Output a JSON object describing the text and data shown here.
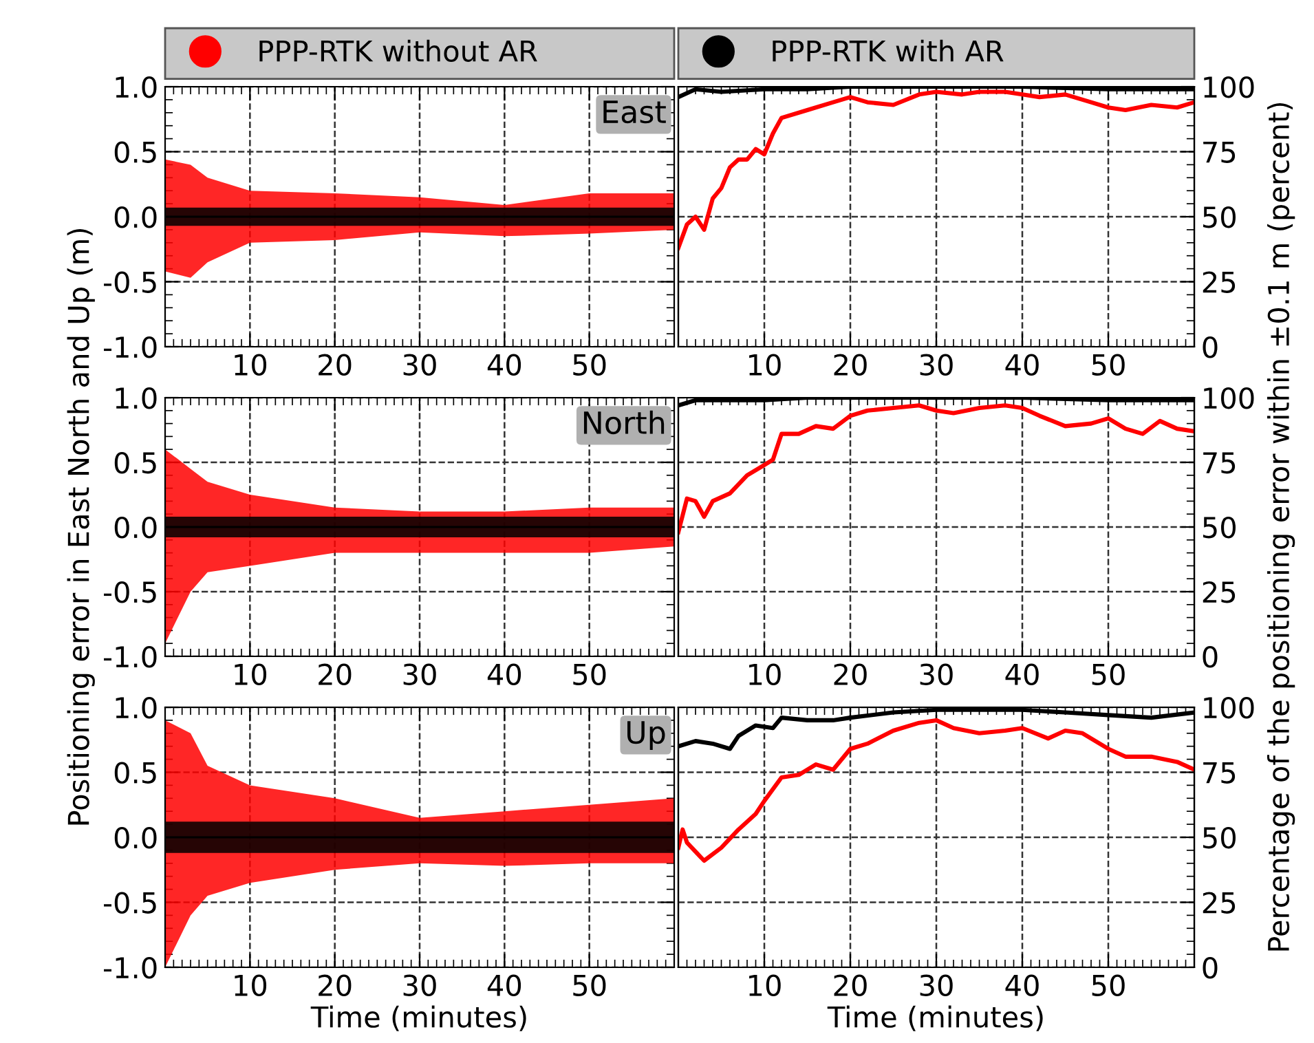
{
  "chart_data": [
    {
      "type": "line",
      "annotations": [
        "East"
      ],
      "xlim": [
        0,
        60
      ],
      "xticks": [
        10,
        20,
        30,
        40,
        50
      ],
      "ylim": [
        -1,
        1
      ],
      "yticks": [
        {
          "value": -1,
          "label": "-1.0"
        },
        {
          "value": -0.5,
          "label": "-0.5"
        },
        {
          "value": 0,
          "label": "0.0"
        },
        {
          "value": 0.5,
          "label": "0.5"
        },
        {
          "value": 1,
          "label": "1.0"
        }
      ],
      "grid": true,
      "legend": "top",
      "line_style": "solid",
      "series": [
        {
          "name": "PPP-RTK without AR",
          "color": "#ff0000",
          "x": [
            0,
            3,
            5,
            10,
            20,
            30,
            40,
            50,
            60
          ],
          "values": [
            null,
            null,
            null,
            null,
            null,
            null,
            null,
            null,
            null
          ],
          "lower": [
            -0.42,
            -0.47,
            -0.35,
            -0.2,
            -0.18,
            -0.12,
            -0.15,
            -0.13,
            -0.1
          ],
          "upper": [
            0.44,
            0.4,
            0.3,
            0.2,
            0.18,
            0.15,
            0.09,
            0.18,
            0.18
          ]
        },
        {
          "color": "#000000",
          "x": [
            0,
            3,
            5,
            10,
            20,
            30,
            40,
            50,
            60
          ],
          "values": [
            0,
            0,
            0,
            0,
            0,
            0,
            0,
            0,
            0
          ],
          "lower": [
            -0.07,
            -0.07,
            -0.07,
            -0.07,
            -0.07,
            -0.07,
            -0.07,
            -0.07,
            -0.07
          ],
          "upper": [
            0.07,
            0.07,
            0.07,
            0.07,
            0.07,
            0.07,
            0.07,
            0.07,
            0.07
          ]
        }
      ]
    },
    {
      "type": "line",
      "xlim": [
        0,
        60
      ],
      "xticks": [
        10,
        20,
        30,
        40,
        50
      ],
      "y2lim": [
        0,
        100
      ],
      "y2ticks": [
        0,
        25,
        50,
        75,
        100
      ],
      "grid": true,
      "legend": "top",
      "line_style": "solid",
      "series": [
        {
          "color": "#ff0000",
          "axis": "y2",
          "x": [
            0,
            1,
            2,
            3,
            4,
            5,
            6,
            7,
            8,
            9,
            10,
            11,
            12,
            15,
            18,
            20,
            22,
            25,
            28,
            30,
            33,
            35,
            38,
            40,
            42,
            45,
            48,
            50,
            52,
            55,
            58,
            60
          ],
          "values": [
            38,
            47,
            50,
            45,
            57,
            61,
            69,
            72,
            72,
            76,
            74,
            82,
            88,
            91,
            94,
            96,
            94,
            93,
            97,
            98,
            97,
            98,
            98,
            97,
            96,
            97,
            94,
            92,
            91,
            93,
            92,
            94
          ]
        },
        {
          "name": "PPP-RTK with AR",
          "color": "#000000",
          "axis": "y2",
          "x": [
            0,
            2,
            5,
            10,
            15,
            20,
            30,
            40,
            50,
            60
          ],
          "values": [
            96,
            99,
            98,
            99,
            99,
            100,
            100,
            100,
            99,
            99
          ]
        }
      ]
    },
    {
      "type": "line",
      "annotations": [
        "North"
      ],
      "ylabel": "Positioning error in East North and Up (m)",
      "xlim": [
        0,
        60
      ],
      "xticks": [
        10,
        20,
        30,
        40,
        50
      ],
      "ylim": [
        -1,
        1
      ],
      "yticks": [
        {
          "value": -1,
          "label": "-1.0"
        },
        {
          "value": -0.5,
          "label": "-0.5"
        },
        {
          "value": 0,
          "label": "0.0"
        },
        {
          "value": 0.5,
          "label": "0.5"
        },
        {
          "value": 1,
          "label": "1.0"
        }
      ],
      "grid": true,
      "line_style": "solid",
      "series": [
        {
          "color": "#ff0000",
          "x": [
            0,
            3,
            5,
            10,
            20,
            30,
            40,
            50,
            60
          ],
          "values": [
            null,
            null,
            null,
            null,
            null,
            null,
            null,
            null,
            null
          ],
          "lower": [
            -0.9,
            -0.5,
            -0.35,
            -0.3,
            -0.2,
            -0.2,
            -0.2,
            -0.2,
            -0.15
          ],
          "upper": [
            0.6,
            0.45,
            0.35,
            0.25,
            0.15,
            0.12,
            0.12,
            0.15,
            0.15
          ]
        },
        {
          "color": "#000000",
          "x": [
            0,
            3,
            5,
            10,
            20,
            30,
            40,
            50,
            60
          ],
          "values": [
            0,
            0,
            0,
            0,
            0,
            0,
            0,
            0,
            0
          ],
          "lower": [
            -0.08,
            -0.08,
            -0.08,
            -0.08,
            -0.08,
            -0.08,
            -0.08,
            -0.08,
            -0.08
          ],
          "upper": [
            0.08,
            0.08,
            0.08,
            0.08,
            0.08,
            0.08,
            0.08,
            0.08,
            0.08
          ]
        }
      ]
    },
    {
      "type": "line",
      "y2label": "Percentage of the positioning error within ±0.1 m (percent)",
      "xlim": [
        0,
        60
      ],
      "xticks": [
        10,
        20,
        30,
        40,
        50
      ],
      "y2lim": [
        0,
        100
      ],
      "y2ticks": [
        0,
        25,
        50,
        75,
        100
      ],
      "grid": true,
      "line_style": "solid",
      "series": [
        {
          "color": "#ff0000",
          "axis": "y2",
          "x": [
            0,
            1,
            2,
            3,
            4,
            6,
            8,
            10,
            11,
            12,
            14,
            16,
            18,
            20,
            22,
            25,
            28,
            30,
            32,
            35,
            38,
            40,
            42,
            45,
            48,
            50,
            52,
            54,
            56,
            58,
            60
          ],
          "values": [
            48,
            61,
            60,
            54,
            60,
            63,
            70,
            74,
            76,
            86,
            86,
            89,
            88,
            93,
            95,
            96,
            97,
            95,
            94,
            96,
            97,
            96,
            93,
            89,
            90,
            92,
            88,
            86,
            91,
            88,
            87
          ]
        },
        {
          "color": "#000000",
          "axis": "y2",
          "x": [
            0,
            2,
            5,
            10,
            15,
            20,
            30,
            40,
            50,
            60
          ],
          "values": [
            97,
            99,
            99,
            99,
            100,
            100,
            100,
            100,
            99,
            99
          ]
        }
      ]
    },
    {
      "type": "line",
      "annotations": [
        "Up"
      ],
      "xlabel": "Time (minutes)",
      "xlim": [
        0,
        60
      ],
      "xticks": [
        10,
        20,
        30,
        40,
        50
      ],
      "ylim": [
        -1,
        1
      ],
      "yticks": [
        {
          "value": -1,
          "label": "-1.0"
        },
        {
          "value": -0.5,
          "label": "-0.5"
        },
        {
          "value": 0,
          "label": "0.0"
        },
        {
          "value": 0.5,
          "label": "0.5"
        },
        {
          "value": 1,
          "label": "1.0"
        }
      ],
      "grid": true,
      "line_style": "solid",
      "series": [
        {
          "color": "#ff0000",
          "x": [
            0,
            3,
            5,
            10,
            20,
            30,
            40,
            50,
            60
          ],
          "values": [
            null,
            null,
            null,
            null,
            null,
            null,
            null,
            null,
            null
          ],
          "lower": [
            -1.0,
            -0.6,
            -0.45,
            -0.35,
            -0.25,
            -0.2,
            -0.22,
            -0.2,
            -0.2
          ],
          "upper": [
            0.9,
            0.8,
            0.55,
            0.4,
            0.3,
            0.15,
            0.2,
            0.25,
            0.3
          ]
        },
        {
          "color": "#000000",
          "x": [
            0,
            3,
            5,
            10,
            20,
            30,
            40,
            50,
            60
          ],
          "values": [
            0,
            0,
            0,
            0,
            0,
            0,
            0,
            0,
            0
          ],
          "lower": [
            -0.12,
            -0.12,
            -0.12,
            -0.12,
            -0.12,
            -0.12,
            -0.12,
            -0.12,
            -0.12
          ],
          "upper": [
            0.12,
            0.12,
            0.12,
            0.12,
            0.12,
            0.12,
            0.12,
            0.12,
            0.12
          ]
        }
      ]
    },
    {
      "type": "line",
      "xlabel": "Time (minutes)",
      "xlim": [
        0,
        60
      ],
      "xticks": [
        10,
        20,
        30,
        40,
        50
      ],
      "y2lim": [
        0,
        100
      ],
      "y2ticks": [
        0,
        25,
        50,
        75,
        100
      ],
      "grid": true,
      "line_style": "solid",
      "series": [
        {
          "color": "#ff0000",
          "axis": "y2",
          "x": [
            0,
            0.5,
            1,
            3,
            5,
            7,
            9,
            10,
            12,
            14,
            16,
            18,
            20,
            22,
            25,
            28,
            30,
            32,
            35,
            38,
            40,
            43,
            45,
            47,
            50,
            52,
            55,
            58,
            60
          ],
          "values": [
            46,
            53,
            48,
            41,
            46,
            53,
            59,
            64,
            73,
            74,
            78,
            76,
            84,
            86,
            91,
            94,
            95,
            92,
            90,
            91,
            92,
            88,
            91,
            90,
            84,
            81,
            81,
            79,
            76
          ]
        },
        {
          "color": "#000000",
          "axis": "y2",
          "x": [
            0,
            2,
            4,
            6,
            7,
            9,
            11,
            12,
            15,
            18,
            20,
            25,
            30,
            40,
            45,
            50,
            55,
            60
          ],
          "values": [
            85,
            87,
            86,
            84,
            89,
            93,
            92,
            96,
            95,
            95,
            96,
            98,
            99,
            99,
            98,
            97,
            96,
            98
          ]
        }
      ]
    }
  ]
}
